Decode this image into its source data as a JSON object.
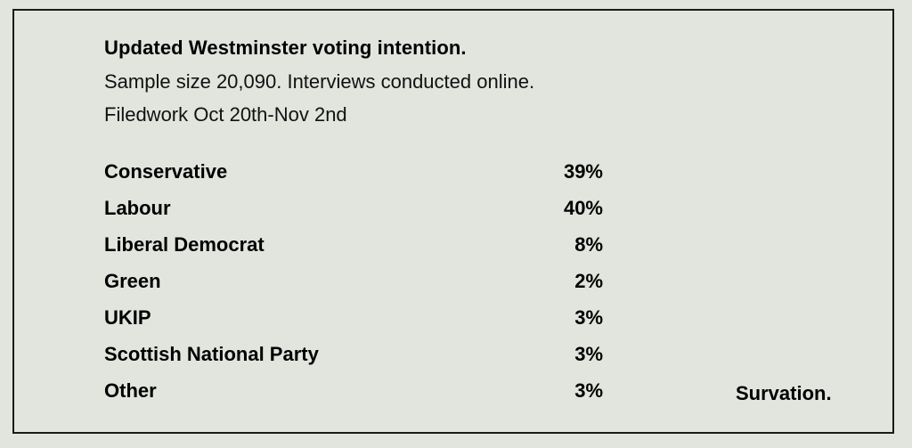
{
  "title": "Updated Westminster voting intention.",
  "subtitle_lines": [
    "Sample size 20,090. Interviews conducted online.",
    "Filedwork Oct 20th-Nov 2nd"
  ],
  "results": [
    {
      "party": "Conservative",
      "share": "39%"
    },
    {
      "party": "Labour",
      "share": "40%"
    },
    {
      "party": "Liberal Democrat",
      "share": "8%"
    },
    {
      "party": "Green",
      "share": "2%"
    },
    {
      "party": "UKIP",
      "share": "3%"
    },
    {
      "party": "Scottish National Party",
      "share": "3%"
    },
    {
      "party": "Other",
      "share": "3%"
    }
  ],
  "source": "Survation.",
  "colors": {
    "background": "#e2e4de",
    "border": "#1a1a1a",
    "text": "#000000"
  }
}
